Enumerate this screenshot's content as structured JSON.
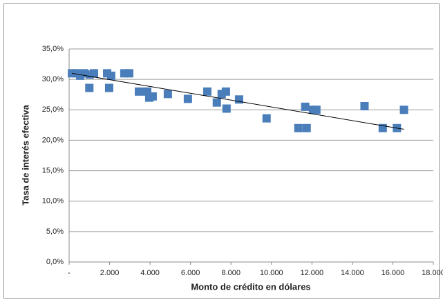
{
  "chart_data": {
    "type": "scatter",
    "y_label": "Tasa de interés efectiva",
    "x_label": "Monto de crédito en dólares",
    "color": "#4a7ebb",
    "x": [
      140,
      380,
      550,
      750,
      1000,
      1020,
      1230,
      1880,
      1980,
      2080,
      2730,
      2970,
      3450,
      3860,
      3960,
      4130,
      4880,
      5870,
      6830,
      7300,
      7540,
      7750,
      7780,
      8400,
      9760,
      11330,
      11670,
      11740,
      12050,
      12220,
      14600,
      15500,
      16200,
      16550
    ],
    "values": [
      31.0,
      31.0,
      30.6,
      31.0,
      28.6,
      30.8,
      31.0,
      31.0,
      28.6,
      30.6,
      31.0,
      31.0,
      28.0,
      28.0,
      27.0,
      27.2,
      27.6,
      26.8,
      28.0,
      26.2,
      27.6,
      28.0,
      25.2,
      26.7,
      23.6,
      22.0,
      25.5,
      22.0,
      25.0,
      25.0,
      25.6,
      22.0,
      22.0,
      25.0
    ],
    "trendline": {
      "x": [
        140,
        16550
      ],
      "values": [
        31.0,
        21.8
      ],
      "color": "#000000"
    },
    "xlim": [
      0,
      18000
    ],
    "xticks": [
      {
        "value": 0,
        "label": "-"
      },
      {
        "value": 2000,
        "label": "2.000"
      },
      {
        "value": 4000,
        "label": "4.000"
      },
      {
        "value": 6000,
        "label": "6.000"
      },
      {
        "value": 8000,
        "label": "8.000"
      },
      {
        "value": 10000,
        "label": "10.000"
      },
      {
        "value": 12000,
        "label": "12.000"
      },
      {
        "value": 14000,
        "label": "14.000"
      },
      {
        "value": 16000,
        "label": "16.000"
      },
      {
        "value": 18000,
        "label": "18.000"
      }
    ],
    "ylim": [
      0,
      35
    ],
    "yticks": [
      {
        "value": 0,
        "label": "0,0%"
      },
      {
        "value": 5,
        "label": "5,0%"
      },
      {
        "value": 10,
        "label": "10,0%"
      },
      {
        "value": 15,
        "label": "15,0%"
      },
      {
        "value": 20,
        "label": "20,0%"
      },
      {
        "value": 25,
        "label": "25,0%"
      },
      {
        "value": 30,
        "label": "30,0%"
      },
      {
        "value": 35,
        "label": "35,0%"
      }
    ],
    "grid": true
  }
}
